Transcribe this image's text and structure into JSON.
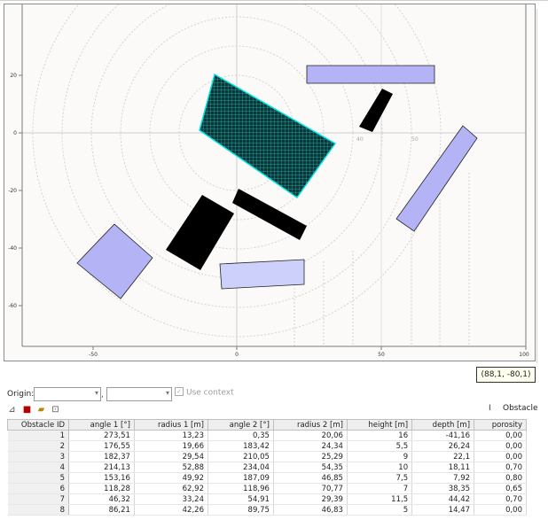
{
  "plot": {
    "x_ticks": [
      "-50",
      "0",
      "50",
      "100"
    ],
    "y_ticks": [
      "20",
      "0",
      "-20",
      "-40",
      "-60"
    ],
    "ring_labels": [
      "40",
      "50"
    ],
    "colors": {
      "background": "#fbfaf8",
      "obstacle_blue": "#b3b3f5",
      "obstacle_lightblue": "#cdd0fb",
      "obstacle_black": "#000000",
      "selected_fill": "#123333",
      "selected_mesh": "#00cccc",
      "grid": "#d3d3d3"
    }
  },
  "coord_readout": "(88,1, -80,1)",
  "origin": {
    "label": "Origin:",
    "x_value": "",
    "y_value": "",
    "separator": ",",
    "use_context_label": "Use context"
  },
  "toolbar": {
    "icons": [
      "add-icon",
      "delete-icon",
      "open-folder-icon",
      "fit-view-icon"
    ]
  },
  "side_tab": {
    "marker": "I",
    "label": "Obstacle"
  },
  "table": {
    "columns": [
      "Obstacle ID",
      "angle 1 [°]",
      "radius 1 [m]",
      "angle 2 [°]",
      "radius 2 [m]",
      "height [m]",
      "depth [m]",
      "porosity"
    ],
    "rows": [
      [
        "1",
        "273,51",
        "13,23",
        "0,35",
        "20,06",
        "16",
        "-41,16",
        "0,00"
      ],
      [
        "2",
        "176,55",
        "19,66",
        "183,42",
        "24,34",
        "5,5",
        "26,24",
        "0,00"
      ],
      [
        "3",
        "182,37",
        "29,54",
        "210,05",
        "25,29",
        "9",
        "22,1",
        "0,00"
      ],
      [
        "4",
        "214,13",
        "52,88",
        "234,04",
        "54,35",
        "10",
        "18,11",
        "0,70"
      ],
      [
        "5",
        "153,16",
        "49,92",
        "187,09",
        "46,85",
        "7,5",
        "7,92",
        "0,80"
      ],
      [
        "6",
        "118,28",
        "62,92",
        "118,96",
        "70,77",
        "7",
        "38,35",
        "0,65"
      ],
      [
        "7",
        "46,32",
        "33,24",
        "54,91",
        "29,39",
        "11,5",
        "44,42",
        "0,70"
      ],
      [
        "8",
        "86,21",
        "42,26",
        "89,75",
        "46,83",
        "5",
        "14,47",
        "0,00"
      ]
    ]
  }
}
